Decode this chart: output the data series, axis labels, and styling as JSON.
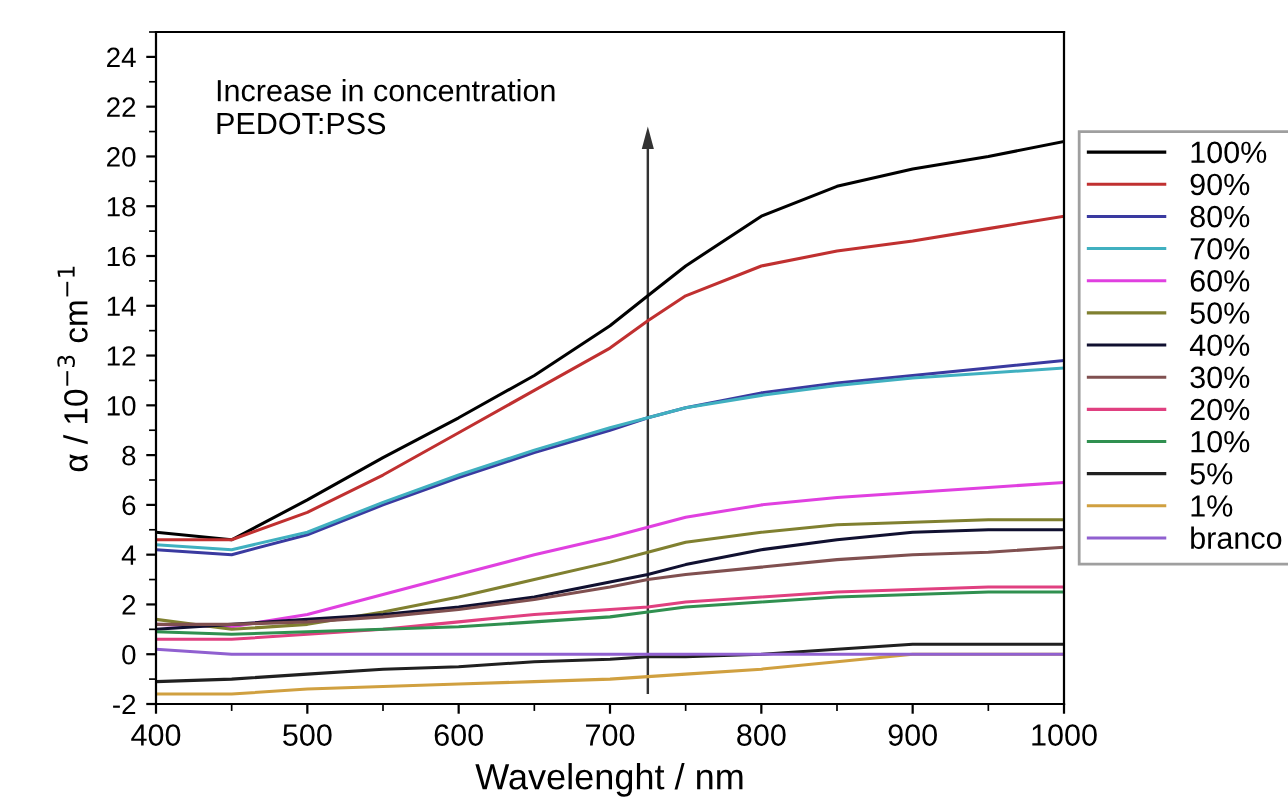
{
  "chart_data": {
    "type": "line",
    "xlabel": "Wavelenght / nm",
    "ylabel": "α / 10$^{−3}$ cm$^{−1}$",
    "x": [
      400,
      450,
      500,
      550,
      600,
      650,
      700,
      725,
      750,
      800,
      850,
      900,
      950,
      1000
    ],
    "xlim": [
      400,
      1000
    ],
    "xticks": [
      400,
      500,
      600,
      700,
      800,
      900,
      1000
    ],
    "ylim": [
      -2,
      25
    ],
    "yticks": [
      -2,
      0,
      2,
      4,
      6,
      8,
      10,
      12,
      14,
      16,
      18,
      20,
      22,
      24
    ],
    "grid": false,
    "legend": "right",
    "marker": "none",
    "line_style": "solid",
    "series": [
      {
        "name": "100%",
        "color": "#000000",
        "values": [
          4.9,
          4.6,
          6.2,
          7.9,
          9.5,
          11.2,
          13.2,
          14.4,
          15.6,
          17.6,
          18.8,
          19.5,
          20.0,
          20.6
        ]
      },
      {
        "name": "90%",
        "color": "#c03030",
        "values": [
          4.6,
          4.6,
          5.7,
          7.2,
          8.9,
          10.6,
          12.3,
          13.4,
          14.4,
          15.6,
          16.2,
          16.6,
          17.1,
          17.6
        ]
      },
      {
        "name": "80%",
        "color": "#3a3aa0",
        "values": [
          4.2,
          4.0,
          4.8,
          6.0,
          7.1,
          8.1,
          9.0,
          9.5,
          9.9,
          10.5,
          10.9,
          11.2,
          11.5,
          11.8
        ]
      },
      {
        "name": "70%",
        "color": "#40b0c0",
        "values": [
          4.4,
          4.2,
          4.9,
          6.1,
          7.2,
          8.2,
          9.1,
          9.5,
          9.9,
          10.4,
          10.8,
          11.1,
          11.3,
          11.5
        ]
      },
      {
        "name": "60%",
        "color": "#e040e0",
        "values": [
          1.2,
          1.1,
          1.6,
          2.4,
          3.2,
          4.0,
          4.7,
          5.1,
          5.5,
          6.0,
          6.3,
          6.5,
          6.7,
          6.9
        ]
      },
      {
        "name": "50%",
        "color": "#808030",
        "values": [
          1.4,
          1.0,
          1.2,
          1.7,
          2.3,
          3.0,
          3.7,
          4.1,
          4.5,
          4.9,
          5.2,
          5.3,
          5.4,
          5.4
        ]
      },
      {
        "name": "40%",
        "color": "#101030",
        "values": [
          1.0,
          1.2,
          1.4,
          1.6,
          1.9,
          2.3,
          2.9,
          3.2,
          3.6,
          4.2,
          4.6,
          4.9,
          5.0,
          5.0
        ]
      },
      {
        "name": "30%",
        "color": "#805050",
        "values": [
          1.2,
          1.2,
          1.3,
          1.5,
          1.8,
          2.2,
          2.7,
          3.0,
          3.2,
          3.5,
          3.8,
          4.0,
          4.1,
          4.3
        ]
      },
      {
        "name": "20%",
        "color": "#e04080",
        "values": [
          0.6,
          0.6,
          0.8,
          1.0,
          1.3,
          1.6,
          1.8,
          1.9,
          2.1,
          2.3,
          2.5,
          2.6,
          2.7,
          2.7
        ]
      },
      {
        "name": "10%",
        "color": "#309050",
        "values": [
          0.9,
          0.8,
          0.9,
          1.0,
          1.1,
          1.3,
          1.5,
          1.7,
          1.9,
          2.1,
          2.3,
          2.4,
          2.5,
          2.5
        ]
      },
      {
        "name": "5%",
        "color": "#202020",
        "values": [
          -1.1,
          -1.0,
          -0.8,
          -0.6,
          -0.5,
          -0.3,
          -0.2,
          -0.1,
          -0.1,
          0.0,
          0.2,
          0.4,
          0.4,
          0.4
        ]
      },
      {
        "name": "1%",
        "color": "#d0a040",
        "values": [
          -1.6,
          -1.6,
          -1.4,
          -1.3,
          -1.2,
          -1.1,
          -1.0,
          -0.9,
          -0.8,
          -0.6,
          -0.3,
          0.0,
          0.0,
          0.0
        ]
      },
      {
        "name": "branco",
        "color": "#9060d0",
        "values": [
          0.2,
          0.0,
          0.0,
          0.0,
          0.0,
          0.0,
          0.0,
          0.0,
          0.0,
          0.0,
          0.0,
          0.0,
          0.0,
          0.0
        ]
      }
    ],
    "annotations": [
      "Increase in concentration\nPEDOT:PSS"
    ]
  }
}
